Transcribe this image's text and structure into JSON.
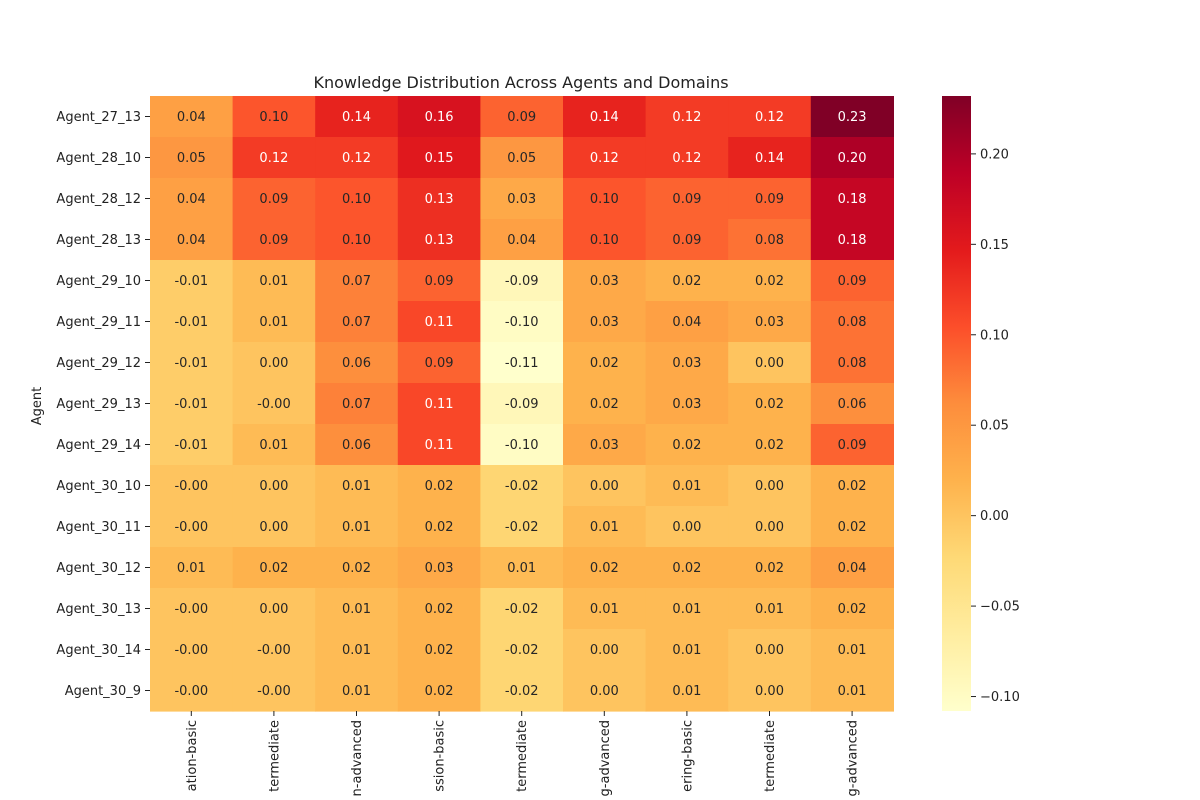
{
  "chart_data": {
    "type": "heatmap",
    "title": "Knowledge Distribution Across Agents and Domains",
    "ylabel": "Agent",
    "xlabel": "",
    "x_tick_labels": [
      "ation-basic",
      "termediate",
      "n-advanced",
      "ssion-basic",
      "termediate",
      "g-advanced",
      "ering-basic",
      "termediate",
      "g-advanced"
    ],
    "y_tick_labels": [
      "Agent_27_13",
      "Agent_28_10",
      "Agent_28_12",
      "Agent_28_13",
      "Agent_29_10",
      "Agent_29_11",
      "Agent_29_12",
      "Agent_29_13",
      "Agent_29_14",
      "Agent_30_10",
      "Agent_30_11",
      "Agent_30_12",
      "Agent_30_13",
      "Agent_30_14",
      "Agent_30_9"
    ],
    "cell_labels": [
      [
        "0.04",
        "0.10",
        "0.14",
        "0.16",
        "0.09",
        "0.14",
        "0.12",
        "0.12",
        "0.23"
      ],
      [
        "0.05",
        "0.12",
        "0.12",
        "0.15",
        "0.05",
        "0.12",
        "0.12",
        "0.14",
        "0.20"
      ],
      [
        "0.04",
        "0.09",
        "0.10",
        "0.13",
        "0.03",
        "0.10",
        "0.09",
        "0.09",
        "0.18"
      ],
      [
        "0.04",
        "0.09",
        "0.10",
        "0.13",
        "0.04",
        "0.10",
        "0.09",
        "0.08",
        "0.18"
      ],
      [
        "-0.01",
        "0.01",
        "0.07",
        "0.09",
        "-0.09",
        "0.03",
        "0.02",
        "0.02",
        "0.09"
      ],
      [
        "-0.01",
        "0.01",
        "0.07",
        "0.11",
        "-0.10",
        "0.03",
        "0.04",
        "0.03",
        "0.08"
      ],
      [
        "-0.01",
        "0.00",
        "0.06",
        "0.09",
        "-0.11",
        "0.02",
        "0.03",
        "0.00",
        "0.08"
      ],
      [
        "-0.01",
        "-0.00",
        "0.07",
        "0.11",
        "-0.09",
        "0.02",
        "0.03",
        "0.02",
        "0.06"
      ],
      [
        "-0.01",
        "0.01",
        "0.06",
        "0.11",
        "-0.10",
        "0.03",
        "0.02",
        "0.02",
        "0.09"
      ],
      [
        "-0.00",
        "0.00",
        "0.01",
        "0.02",
        "-0.02",
        "0.00",
        "0.01",
        "0.00",
        "0.02"
      ],
      [
        "-0.00",
        "0.00",
        "0.01",
        "0.02",
        "-0.02",
        "0.01",
        "0.00",
        "0.00",
        "0.02"
      ],
      [
        "0.01",
        "0.02",
        "0.02",
        "0.03",
        "0.01",
        "0.02",
        "0.02",
        "0.02",
        "0.04"
      ],
      [
        "-0.00",
        "0.00",
        "0.01",
        "0.02",
        "-0.02",
        "0.01",
        "0.01",
        "0.01",
        "0.02"
      ],
      [
        "-0.00",
        "-0.00",
        "0.01",
        "0.02",
        "-0.02",
        "0.00",
        "0.01",
        "0.00",
        "0.01"
      ],
      [
        "-0.00",
        "-0.00",
        "0.01",
        "0.02",
        "-0.02",
        "0.00",
        "0.01",
        "0.00",
        "0.01"
      ]
    ],
    "values": [
      [
        0.04,
        0.1,
        0.14,
        0.16,
        0.09,
        0.14,
        0.12,
        0.12,
        0.232
      ],
      [
        0.05,
        0.12,
        0.12,
        0.15,
        0.05,
        0.12,
        0.12,
        0.14,
        0.2
      ],
      [
        0.04,
        0.09,
        0.1,
        0.13,
        0.03,
        0.1,
        0.09,
        0.09,
        0.18
      ],
      [
        0.04,
        0.09,
        0.1,
        0.13,
        0.04,
        0.1,
        0.09,
        0.08,
        0.18
      ],
      [
        -0.01,
        0.01,
        0.07,
        0.09,
        -0.09,
        0.03,
        0.02,
        0.02,
        0.09
      ],
      [
        -0.01,
        0.01,
        0.07,
        0.11,
        -0.1,
        0.03,
        0.04,
        0.03,
        0.08
      ],
      [
        -0.01,
        0.0,
        0.06,
        0.09,
        -0.108,
        0.02,
        0.03,
        0.0,
        0.08
      ],
      [
        -0.01,
        -0.0,
        0.07,
        0.11,
        -0.09,
        0.02,
        0.03,
        0.02,
        0.06
      ],
      [
        -0.01,
        0.01,
        0.06,
        0.11,
        -0.1,
        0.03,
        0.02,
        0.02,
        0.09
      ],
      [
        -0.0,
        0.0,
        0.01,
        0.02,
        -0.02,
        0.0,
        0.01,
        0.0,
        0.02
      ],
      [
        -0.0,
        0.0,
        0.01,
        0.02,
        -0.02,
        0.01,
        0.0,
        0.0,
        0.02
      ],
      [
        0.01,
        0.02,
        0.02,
        0.03,
        0.01,
        0.02,
        0.02,
        0.02,
        0.04
      ],
      [
        -0.0,
        0.0,
        0.01,
        0.02,
        -0.02,
        0.01,
        0.01,
        0.01,
        0.02
      ],
      [
        -0.0,
        -0.0,
        0.01,
        0.02,
        -0.02,
        0.0,
        0.01,
        0.0,
        0.01
      ],
      [
        -0.0,
        -0.0,
        0.01,
        0.02,
        -0.02,
        0.0,
        0.01,
        0.0,
        0.01
      ]
    ],
    "vmin": -0.108,
    "vmax": 0.232,
    "colormap": "YlOrRd",
    "colormap_stops": [
      "#ffffcc",
      "#ffeda0",
      "#fed976",
      "#feb24c",
      "#fd8d3c",
      "#fc4e2a",
      "#e31a1c",
      "#bd0026",
      "#800026"
    ],
    "colorbar_ticks": [
      "-0.10",
      "-0.05",
      "0.00",
      "0.05",
      "0.10",
      "0.15",
      "0.20"
    ],
    "colorbar_tick_values": [
      -0.1,
      -0.05,
      0.0,
      0.05,
      0.1,
      0.15,
      0.2
    ],
    "legend": "colorbar-right",
    "grid": false
  }
}
